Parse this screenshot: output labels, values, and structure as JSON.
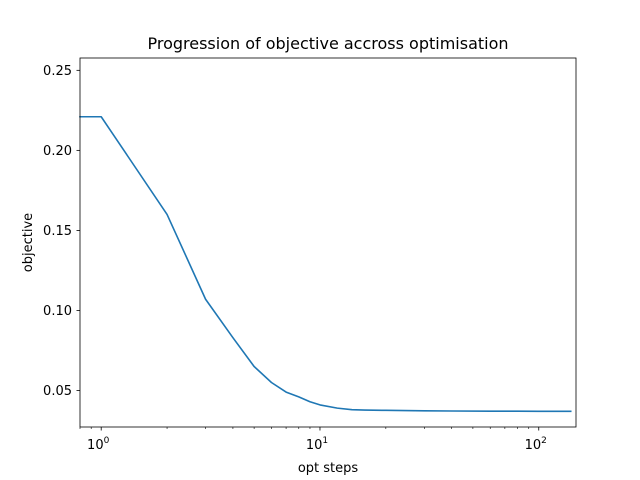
{
  "chart_data": {
    "type": "line",
    "title": "Progression of objective accross optimisation",
    "xlabel": "opt steps",
    "ylabel": "objective",
    "xscale": "log",
    "xlim": [
      0.8,
      148
    ],
    "ylim": [
      0.0272,
      0.2577
    ],
    "grid": false,
    "legend": "none",
    "x_ticks": [
      1,
      10,
      100
    ],
    "x_tick_labels": [
      {
        "base": "10",
        "exp": "0"
      },
      {
        "base": "10",
        "exp": "1"
      },
      {
        "base": "10",
        "exp": "2"
      }
    ],
    "y_ticks": [
      0.05,
      0.1,
      0.15,
      0.2,
      0.25
    ],
    "y_tick_labels": [
      "0.05",
      "0.10",
      "0.15",
      "0.20",
      "0.25"
    ],
    "series": [
      {
        "color": "#1f77b4",
        "x": [
          0.8,
          1,
          2,
          3,
          4,
          5,
          6,
          7,
          8,
          9,
          10,
          12,
          14,
          16,
          20,
          30,
          40,
          60,
          80,
          100,
          140
        ],
        "y": [
          0.221,
          0.221,
          0.16,
          0.107,
          0.083,
          0.065,
          0.055,
          0.049,
          0.046,
          0.043,
          0.041,
          0.039,
          0.038,
          0.0378,
          0.0376,
          0.0373,
          0.0372,
          0.0371,
          0.0371,
          0.037,
          0.037
        ]
      }
    ]
  }
}
